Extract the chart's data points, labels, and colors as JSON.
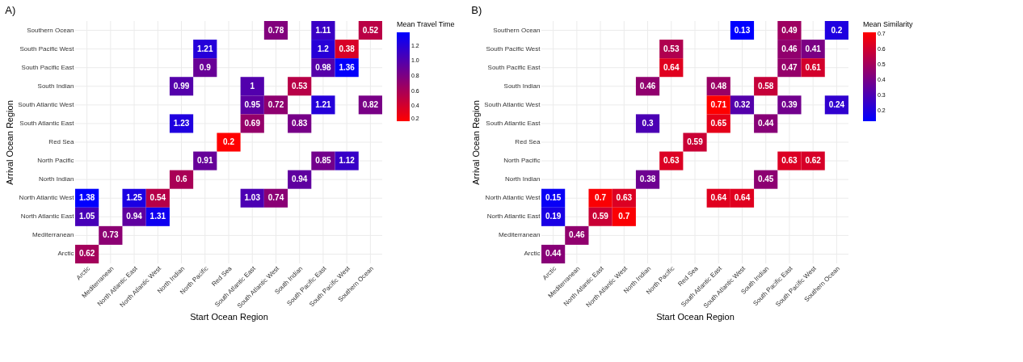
{
  "chart_data": [
    {
      "type": "heatmap",
      "title": "A)",
      "xlabel": "Start Ocean Region",
      "ylabel": "Arrival Ocean Region",
      "legend_title": "Mean Travel Time",
      "clim": [
        0.2,
        1.38
      ],
      "cticks": [
        0.2,
        0.4,
        0.6,
        0.8,
        {
          "value": 1,
          "label": "1.0"
        },
        1.2
      ],
      "colors": [
        "#ff0000",
        "#0000ff"
      ],
      "grid": true,
      "data_labels": true,
      "categories": [
        "Arctic",
        "Mediterranean",
        "North Atlantic East",
        "North Atlantic West",
        "North Indian",
        "North Pacific",
        "Red Sea",
        "South Atlantic East",
        "South Atlantic West",
        "South Indian",
        "South Pacific East",
        "South Pacific West",
        "Southern Ocean"
      ],
      "y_categories": [
        "Southern Ocean",
        "South Pacific West",
        "South Pacific East",
        "South Indian",
        "South Atlantic West",
        "South Atlantic East",
        "Red Sea",
        "North Pacific",
        "North Indian",
        "North Atlantic West",
        "North Atlantic East",
        "Mediterranean",
        "Arctic"
      ],
      "cells": [
        [
          null,
          null,
          null,
          null,
          null,
          null,
          null,
          null,
          0.78,
          null,
          1.11,
          null,
          0.52
        ],
        [
          null,
          null,
          null,
          null,
          null,
          1.21,
          null,
          null,
          null,
          null,
          1.2,
          0.38,
          null
        ],
        [
          null,
          null,
          null,
          null,
          null,
          0.9,
          null,
          null,
          null,
          null,
          0.98,
          1.36,
          null
        ],
        [
          null,
          null,
          null,
          null,
          0.99,
          null,
          null,
          1,
          null,
          0.53,
          null,
          null,
          null
        ],
        [
          null,
          null,
          null,
          null,
          null,
          null,
          null,
          0.95,
          0.72,
          null,
          1.21,
          null,
          0.82
        ],
        [
          null,
          null,
          null,
          null,
          1.23,
          null,
          null,
          0.69,
          null,
          0.83,
          null,
          null,
          null
        ],
        [
          null,
          null,
          null,
          null,
          null,
          null,
          0.2,
          null,
          null,
          null,
          null,
          null,
          null
        ],
        [
          null,
          null,
          null,
          null,
          null,
          0.91,
          null,
          null,
          null,
          null,
          0.85,
          1.12,
          null
        ],
        [
          null,
          null,
          null,
          null,
          0.6,
          null,
          null,
          null,
          null,
          0.94,
          null,
          null,
          null
        ],
        [
          1.38,
          null,
          1.25,
          0.54,
          null,
          null,
          null,
          1.03,
          0.74,
          null,
          null,
          null,
          null
        ],
        [
          1.05,
          null,
          0.94,
          1.31,
          null,
          null,
          null,
          null,
          null,
          null,
          null,
          null,
          null
        ],
        [
          null,
          0.73,
          null,
          null,
          null,
          null,
          null,
          null,
          null,
          null,
          null,
          null,
          null
        ],
        [
          0.62,
          null,
          null,
          null,
          null,
          null,
          null,
          null,
          null,
          null,
          null,
          null,
          null
        ]
      ]
    },
    {
      "type": "heatmap",
      "title": "B)",
      "xlabel": "Start Ocean Region",
      "ylabel": "Arrival Ocean Region",
      "legend_title": "Mean Similarity",
      "clim": [
        0.13,
        0.71
      ],
      "cticks": [
        0.2,
        0.3,
        0.4,
        0.5,
        0.6,
        0.7
      ],
      "colors": [
        "#0000ff",
        "#ff0000"
      ],
      "grid": true,
      "data_labels": true,
      "categories": [
        "Arctic",
        "Mediterranean",
        "North Atlantic East",
        "North Atlantic West",
        "North Indian",
        "North Pacific",
        "Red Sea",
        "South Atlantic East",
        "South Atlantic West",
        "South Indian",
        "South Pacific East",
        "South Pacific West",
        "Southern Ocean"
      ],
      "y_categories": [
        "Southern Ocean",
        "South Pacific West",
        "South Pacific East",
        "South Indian",
        "South Atlantic West",
        "South Atlantic East",
        "Red Sea",
        "North Pacific",
        "North Indian",
        "North Atlantic West",
        "North Atlantic East",
        "Mediterranean",
        "Arctic"
      ],
      "cells": [
        [
          null,
          null,
          null,
          null,
          null,
          null,
          null,
          null,
          0.13,
          null,
          0.49,
          null,
          0.2
        ],
        [
          null,
          null,
          null,
          null,
          null,
          0.53,
          null,
          null,
          null,
          null,
          0.46,
          0.41,
          null
        ],
        [
          null,
          null,
          null,
          null,
          null,
          0.64,
          null,
          null,
          null,
          null,
          0.47,
          0.61,
          null
        ],
        [
          null,
          null,
          null,
          null,
          0.46,
          null,
          null,
          0.48,
          null,
          0.58,
          null,
          null,
          null
        ],
        [
          null,
          null,
          null,
          null,
          null,
          null,
          null,
          0.71,
          0.32,
          null,
          0.39,
          null,
          0.24
        ],
        [
          null,
          null,
          null,
          null,
          0.3,
          null,
          null,
          0.65,
          null,
          0.44,
          null,
          null,
          null
        ],
        [
          null,
          null,
          null,
          null,
          null,
          null,
          0.59,
          null,
          null,
          null,
          null,
          null,
          null
        ],
        [
          null,
          null,
          null,
          null,
          null,
          0.63,
          null,
          null,
          null,
          null,
          0.63,
          0.62,
          null
        ],
        [
          null,
          null,
          null,
          null,
          0.38,
          null,
          null,
          null,
          null,
          0.45,
          null,
          null,
          null
        ],
        [
          0.15,
          null,
          0.7,
          0.63,
          null,
          null,
          null,
          0.64,
          0.64,
          null,
          null,
          null,
          null
        ],
        [
          0.19,
          null,
          0.59,
          0.7,
          null,
          null,
          null,
          null,
          null,
          null,
          null,
          null,
          null
        ],
        [
          null,
          0.46,
          null,
          null,
          null,
          null,
          null,
          null,
          null,
          null,
          null,
          null,
          null
        ],
        [
          0.44,
          null,
          null,
          null,
          null,
          null,
          null,
          null,
          null,
          null,
          null,
          null,
          null
        ]
      ]
    }
  ]
}
